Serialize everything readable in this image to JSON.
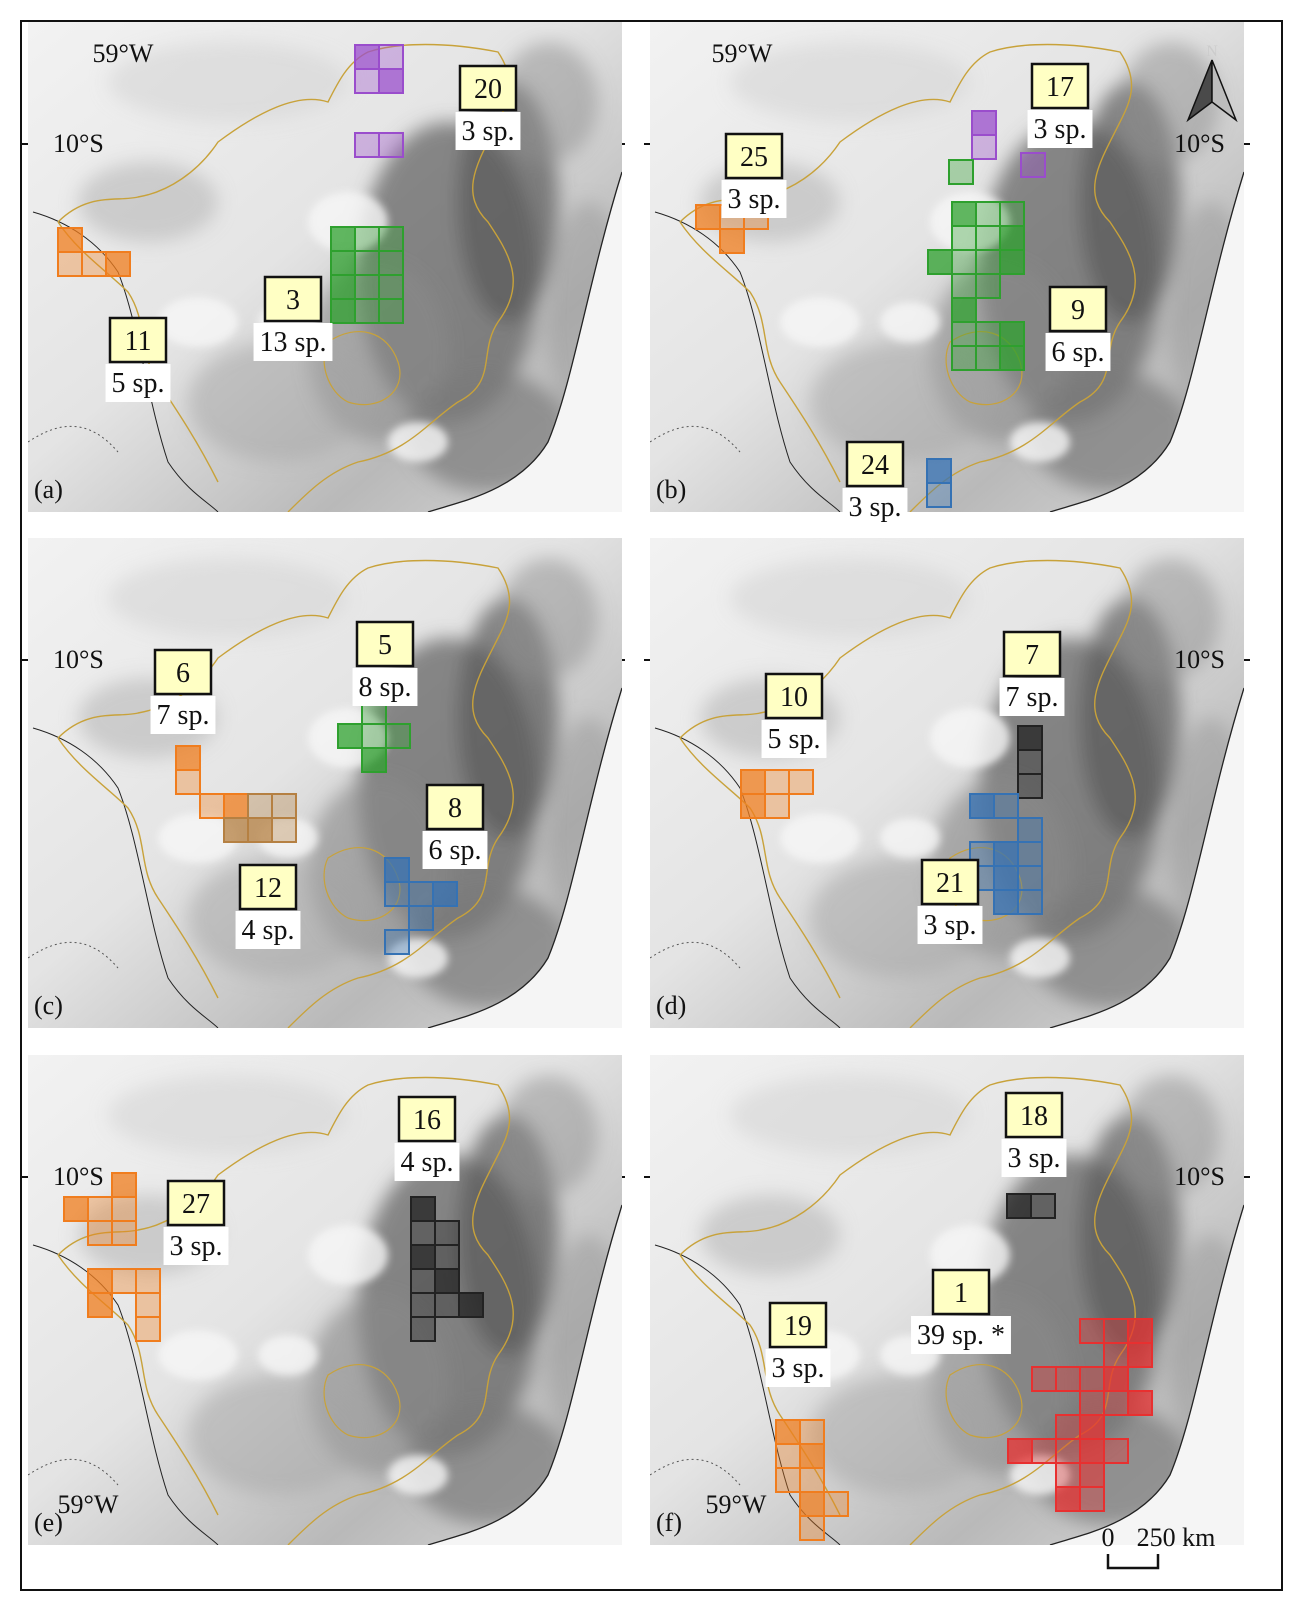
{
  "figure": {
    "scale_bar": {
      "start_label": "0",
      "end_label": "250 km"
    },
    "north_arrow": {
      "label": "N"
    },
    "colors": {
      "border_yellow": "#c8a23a",
      "label_fill": "#ffffc4",
      "orange": "#f07d1e",
      "green": "#2ea02e",
      "purple": "#9a4dcc",
      "blue": "#3572b4",
      "brown": "#b58042",
      "black": "#222222",
      "red": "#e83030"
    }
  },
  "panels": [
    {
      "letter": "(a)",
      "coord_labels": {
        "lon": "59°W",
        "lat": "10°S"
      },
      "areas": [
        {
          "id": "20",
          "species": "3 sp.",
          "color": "purple"
        },
        {
          "id": "3",
          "species": "13 sp.",
          "color": "green"
        },
        {
          "id": "11",
          "species": "5 sp.",
          "color": "orange"
        }
      ]
    },
    {
      "letter": "(b)",
      "coord_labels": {
        "lon": "59°W",
        "lat": "10°S"
      },
      "areas": [
        {
          "id": "17",
          "species": "3 sp.",
          "color": "purple"
        },
        {
          "id": "25",
          "species": "3 sp.",
          "color": "orange"
        },
        {
          "id": "9",
          "species": "6 sp.",
          "color": "green"
        },
        {
          "id": "24",
          "species": "3 sp.",
          "color": "blue"
        }
      ]
    },
    {
      "letter": "(c)",
      "coord_labels": {
        "lat": "10°S"
      },
      "areas": [
        {
          "id": "6",
          "species": "7 sp.",
          "color": "orange"
        },
        {
          "id": "5",
          "species": "8 sp.",
          "color": "green"
        },
        {
          "id": "8",
          "species": "6 sp.",
          "color": "blue"
        },
        {
          "id": "12",
          "species": "4 sp.",
          "color": "brown"
        }
      ]
    },
    {
      "letter": "(d)",
      "coord_labels": {
        "lat": "10°S"
      },
      "areas": [
        {
          "id": "10",
          "species": "5 sp.",
          "color": "orange"
        },
        {
          "id": "7",
          "species": "7 sp.",
          "color": "black"
        },
        {
          "id": "21",
          "species": "3 sp.",
          "color": "blue"
        }
      ]
    },
    {
      "letter": "(e)",
      "coord_labels": {
        "lon": "59°W",
        "lat": "10°S"
      },
      "areas": [
        {
          "id": "16",
          "species": "4 sp.",
          "color": "black"
        },
        {
          "id": "27",
          "species": "3 sp.",
          "color": "orange"
        }
      ]
    },
    {
      "letter": "(f)",
      "coord_labels": {
        "lon": "59°W",
        "lat": "10°S"
      },
      "areas": [
        {
          "id": "18",
          "species": "3 sp.",
          "color": "black"
        },
        {
          "id": "1",
          "species": "39 sp. *",
          "color": "red"
        },
        {
          "id": "19",
          "species": "3 sp.",
          "color": "orange"
        }
      ]
    }
  ]
}
